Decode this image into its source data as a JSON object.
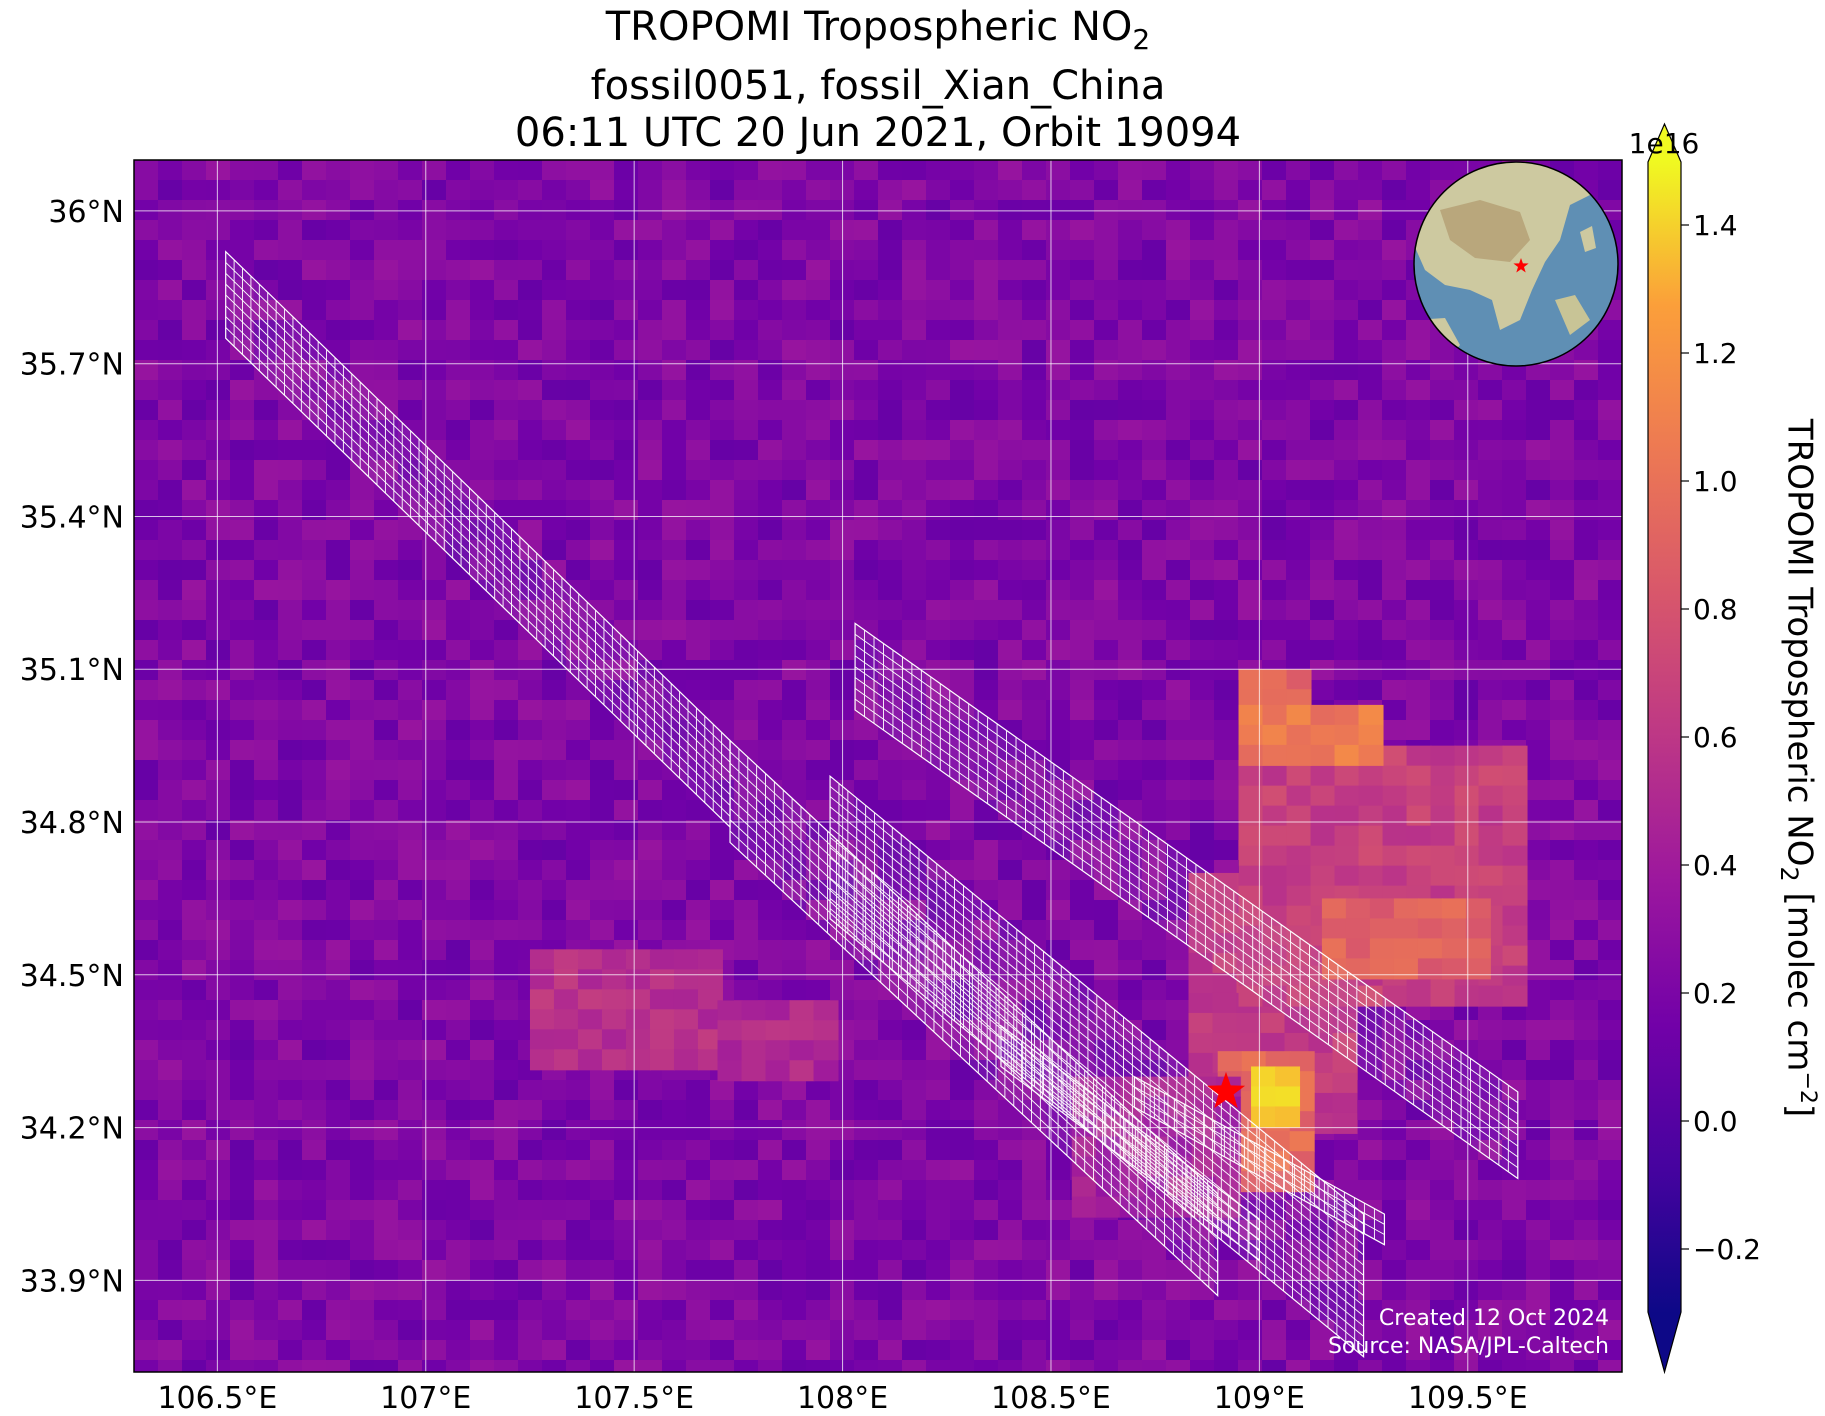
{
  "title": {
    "line1_prefix": "TROPOMI Tropospheric NO",
    "line1_sub": "2",
    "line2": "fossil0051, fossil_Xian_China",
    "line3": "06:11 UTC 20 Jun 2021, Orbit 19094"
  },
  "map": {
    "lon_range": [
      106.3,
      109.87
    ],
    "lat_range": [
      33.72,
      36.1
    ],
    "x_ticks": [
      {
        "value": 106.5,
        "label": "106.5°E"
      },
      {
        "value": 107.0,
        "label": "107°E"
      },
      {
        "value": 107.5,
        "label": "107.5°E"
      },
      {
        "value": 108.0,
        "label": "108°E"
      },
      {
        "value": 108.5,
        "label": "108.5°E"
      },
      {
        "value": 109.0,
        "label": "109°E"
      },
      {
        "value": 109.5,
        "label": "109.5°E"
      }
    ],
    "y_ticks": [
      {
        "value": 36.0,
        "label": "36°N"
      },
      {
        "value": 35.7,
        "label": "35.7°N"
      },
      {
        "value": 35.4,
        "label": "35.4°N"
      },
      {
        "value": 35.1,
        "label": "35.1°N"
      },
      {
        "value": 34.8,
        "label": "34.8°N"
      },
      {
        "value": 34.5,
        "label": "34.5°N"
      },
      {
        "value": 34.2,
        "label": "34.2°N"
      },
      {
        "value": 33.9,
        "label": "33.9°N"
      }
    ],
    "gridlines": true,
    "site_marker": {
      "lon": 108.92,
      "lat": 34.27,
      "symbol": "star",
      "color": "#ff0000"
    },
    "credit_line1": "Created 12 Oct 2024",
    "credit_line2": "Source: NASA/JPL-Caltech"
  },
  "colorbar": {
    "colormap": "plasma",
    "range": [
      -0.3,
      1.5
    ],
    "exponent_label": "1e16",
    "extend": "both",
    "ticks": [
      {
        "value": -0.2,
        "label": "−0.2"
      },
      {
        "value": 0.0,
        "label": "0.0"
      },
      {
        "value": 0.2,
        "label": "0.2"
      },
      {
        "value": 0.4,
        "label": "0.4"
      },
      {
        "value": 0.6,
        "label": "0.6"
      },
      {
        "value": 0.8,
        "label": "0.8"
      },
      {
        "value": 1.0,
        "label": "1.0"
      },
      {
        "value": 1.2,
        "label": "1.2"
      },
      {
        "value": 1.4,
        "label": "1.4"
      }
    ],
    "label_prefix": "TROPOMI Tropospheric NO",
    "label_sub": "2",
    "label_mid": " [molec cm",
    "label_sup": "−2",
    "label_suffix": "]"
  },
  "inset_globe": {
    "marker_color": "#ff0000",
    "ocean_color": "#5f8fb4",
    "land_color": "#cdc9a0"
  }
}
